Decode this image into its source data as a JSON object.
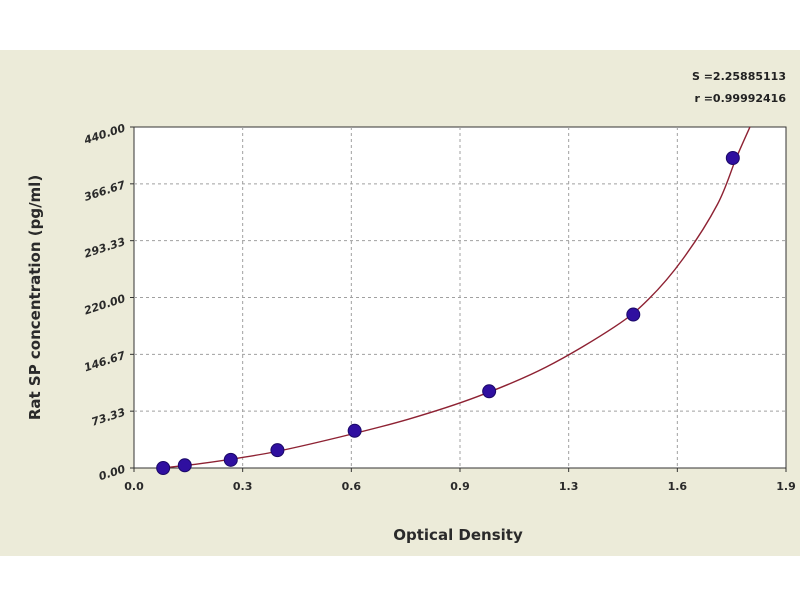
{
  "chart_data": {
    "type": "scatter",
    "xlabel": "Optical Density",
    "ylabel": "Rat SP concentration (pg/ml)",
    "xlim": [
      0.0,
      1.9
    ],
    "ylim": [
      0.0,
      440.0
    ],
    "x_ticks": [
      "0.0",
      "0.3",
      "0.6",
      "0.9",
      "1.3",
      "1.6",
      "1.9"
    ],
    "y_ticks": [
      "0.00",
      "73.33",
      "146.67",
      "220.00",
      "293.33",
      "366.67",
      "440.00"
    ],
    "grid": true,
    "stats": {
      "s": "S =2.25885113",
      "r": "r =0.99992416"
    },
    "points": [
      {
        "x": 0.085,
        "y": 0.0
      },
      {
        "x": 0.148,
        "y": 3.5
      },
      {
        "x": 0.282,
        "y": 10.5
      },
      {
        "x": 0.418,
        "y": 23.0
      },
      {
        "x": 0.643,
        "y": 48.0
      },
      {
        "x": 1.035,
        "y": 99.0
      },
      {
        "x": 1.455,
        "y": 198.0
      },
      {
        "x": 1.745,
        "y": 400.0
      }
    ],
    "fit_curve": [
      {
        "x": 0.08,
        "y": 0.0
      },
      {
        "x": 0.2,
        "y": 6.0
      },
      {
        "x": 0.4,
        "y": 20.0
      },
      {
        "x": 0.6,
        "y": 40.0
      },
      {
        "x": 0.8,
        "y": 63.0
      },
      {
        "x": 1.0,
        "y": 92.0
      },
      {
        "x": 1.2,
        "y": 130.0
      },
      {
        "x": 1.4,
        "y": 182.0
      },
      {
        "x": 1.5,
        "y": 218.0
      },
      {
        "x": 1.6,
        "y": 270.0
      },
      {
        "x": 1.7,
        "y": 340.0
      },
      {
        "x": 1.755,
        "y": 400.0
      },
      {
        "x": 1.8,
        "y": 445.0
      }
    ],
    "colors": {
      "point": "#2f0fa0",
      "point_edge": "#1a0866",
      "curve": "#8e2233",
      "grid": "#a0a0a0",
      "plot_bg": "#ffffff",
      "panel_bg": "#ecebd9"
    }
  }
}
